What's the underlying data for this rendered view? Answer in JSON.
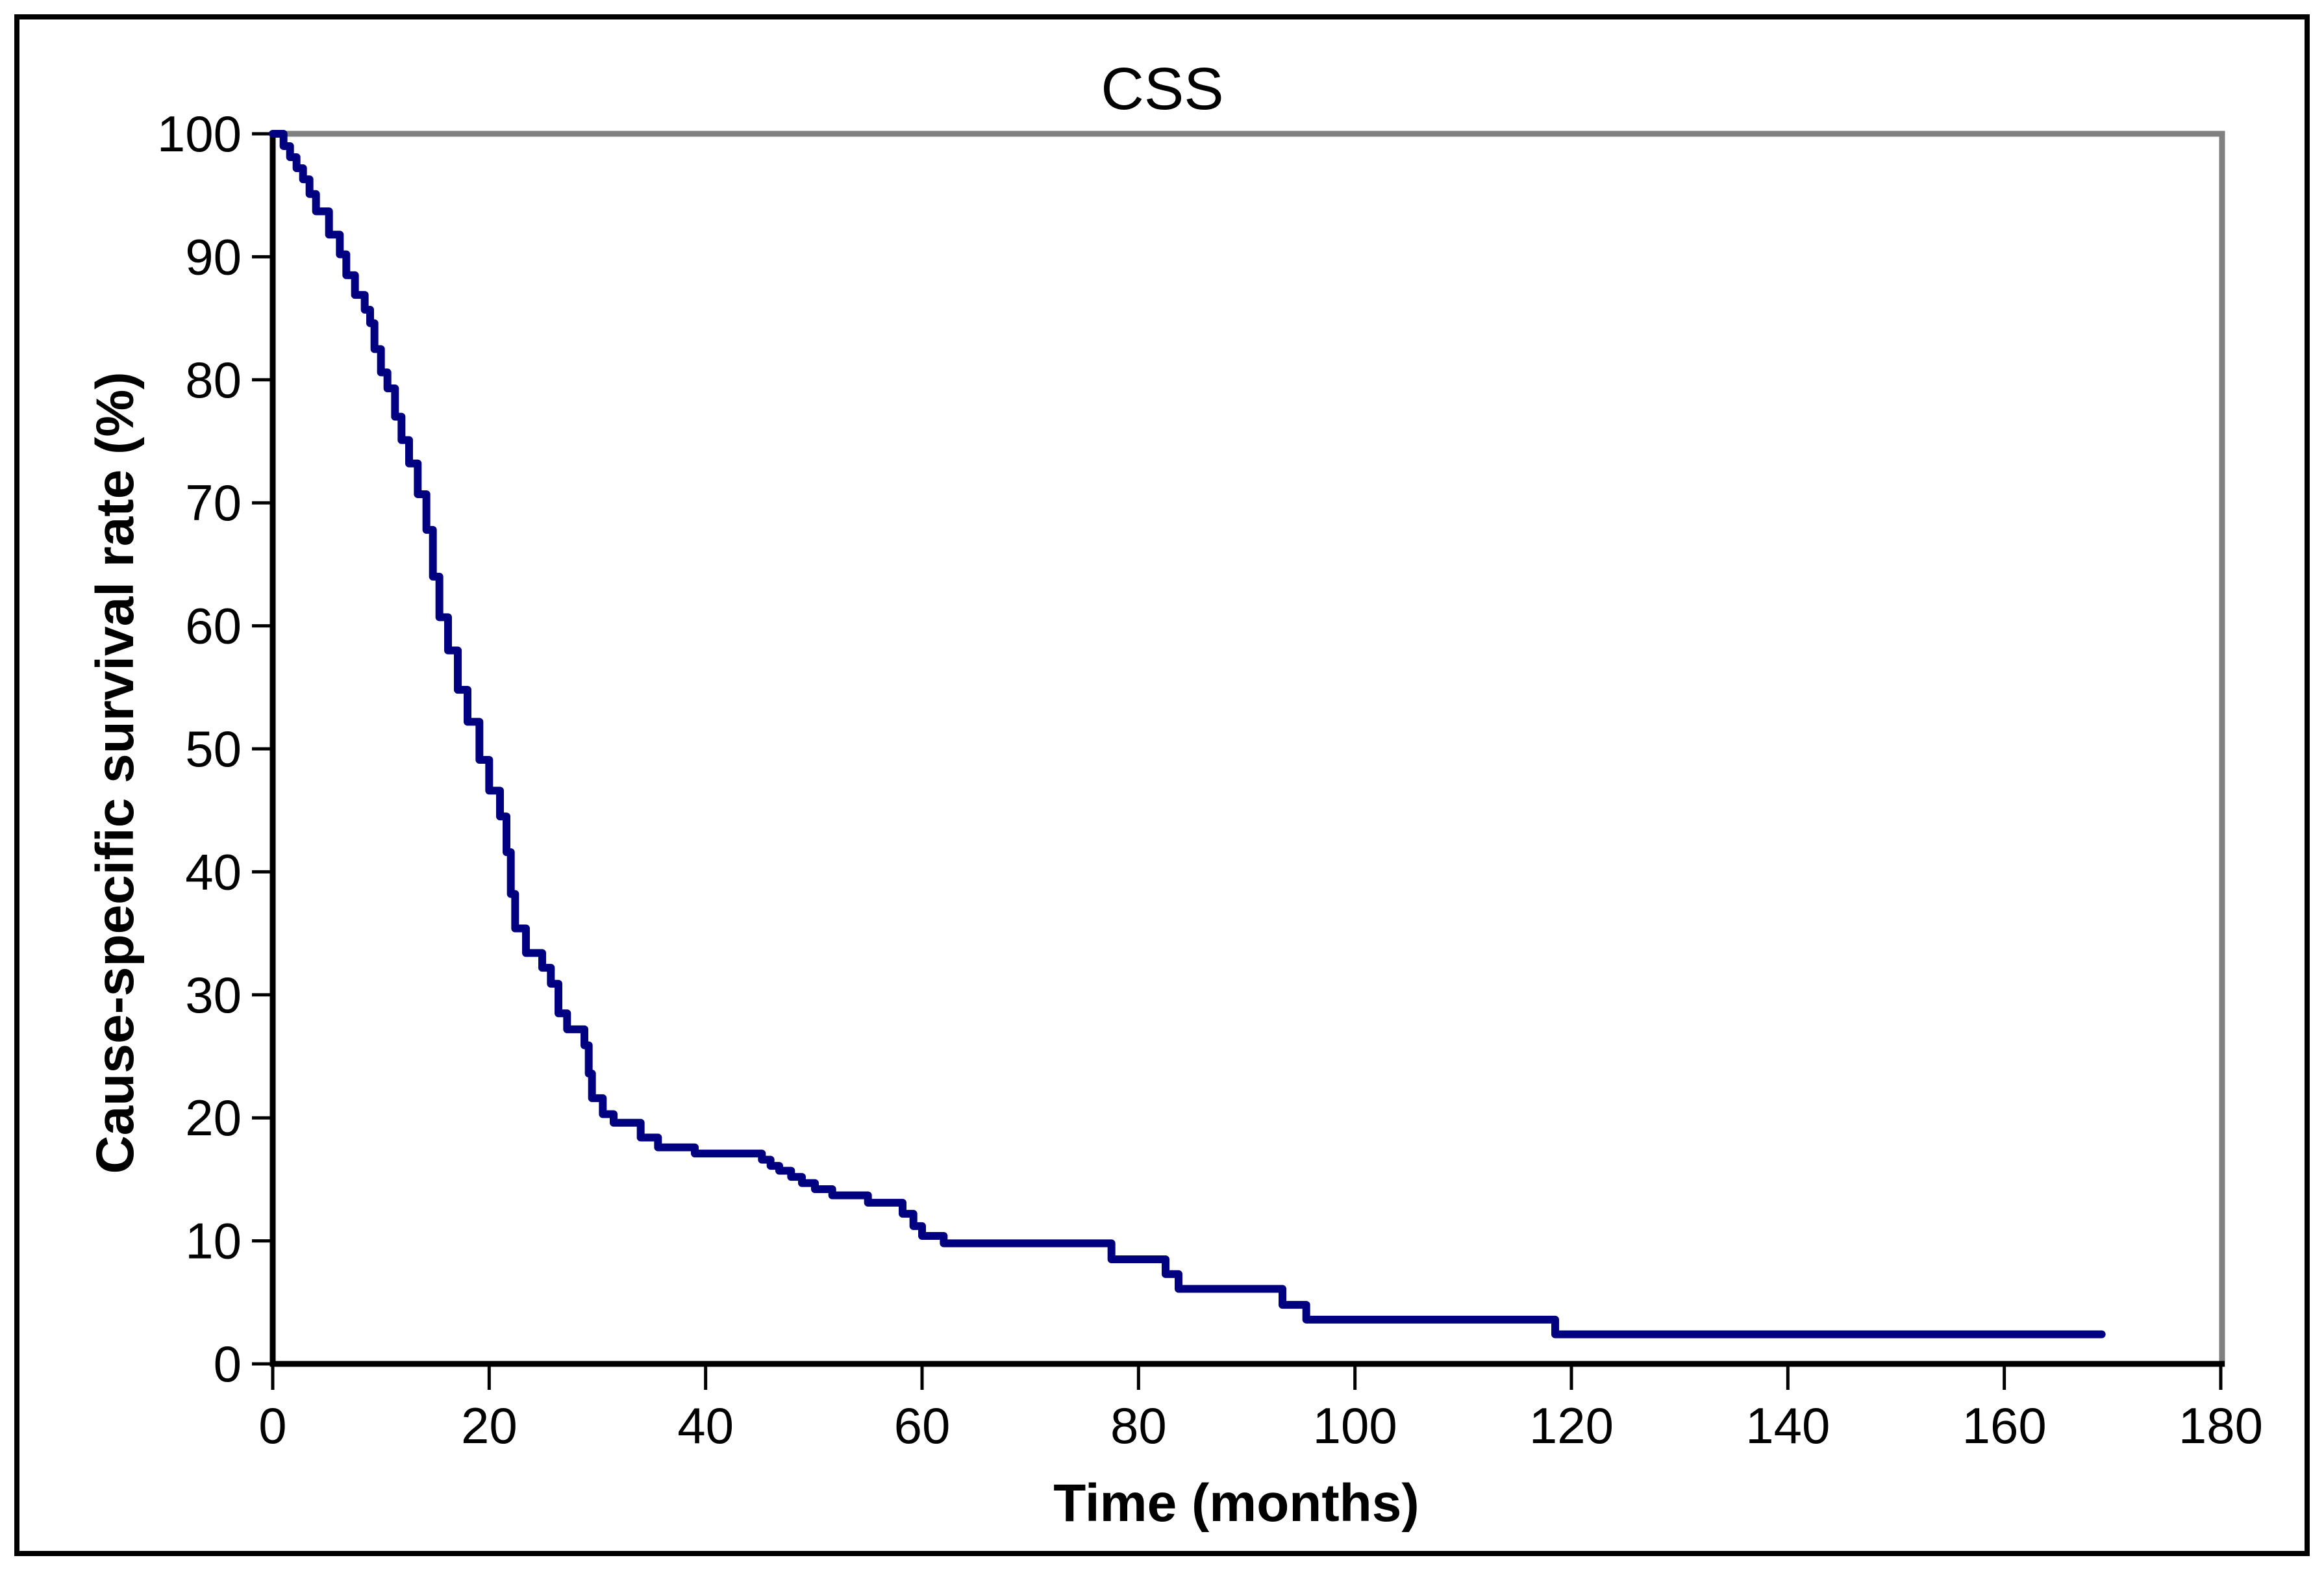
{
  "figure": {
    "title": "CSS",
    "background_color": "#ffffff",
    "outer_border_color": "#000000"
  },
  "chart_data": {
    "type": "line",
    "subtype": "kaplan-meier-step",
    "title": "CSS",
    "xlabel": "Time (months)",
    "ylabel": "Cause-specific survival rate (%)",
    "xlim": [
      0,
      180
    ],
    "ylim": [
      0,
      100
    ],
    "x_ticks": [
      0,
      20,
      40,
      60,
      80,
      100,
      120,
      140,
      160,
      180
    ],
    "y_ticks": [
      100,
      90,
      80,
      70,
      60,
      50,
      40,
      30,
      20,
      10,
      0
    ],
    "grid": "off",
    "legend": "none",
    "series": [
      {
        "name": "Cause-specific survival",
        "color": "#000080",
        "end_time": 169,
        "points": [
          [
            0,
            100
          ],
          [
            1.0,
            99.0
          ],
          [
            1.6,
            98.1
          ],
          [
            2.2,
            97.2
          ],
          [
            2.8,
            96.3
          ],
          [
            3.4,
            95.1
          ],
          [
            4.0,
            93.7
          ],
          [
            5.2,
            91.8
          ],
          [
            6.2,
            90.2
          ],
          [
            6.8,
            88.5
          ],
          [
            7.6,
            86.9
          ],
          [
            8.5,
            85.7
          ],
          [
            9.0,
            84.6
          ],
          [
            9.4,
            82.5
          ],
          [
            10.0,
            80.6
          ],
          [
            10.6,
            79.3
          ],
          [
            11.3,
            77.0
          ],
          [
            11.9,
            75.1
          ],
          [
            12.6,
            73.2
          ],
          [
            13.4,
            70.7
          ],
          [
            14.2,
            67.8
          ],
          [
            14.8,
            64.0
          ],
          [
            15.4,
            60.7
          ],
          [
            16.2,
            58.0
          ],
          [
            17.1,
            54.8
          ],
          [
            18.0,
            52.2
          ],
          [
            19.1,
            49.1
          ],
          [
            20.0,
            46.6
          ],
          [
            21.0,
            44.5
          ],
          [
            21.6,
            41.6
          ],
          [
            22.0,
            38.2
          ],
          [
            22.4,
            35.4
          ],
          [
            23.4,
            33.4
          ],
          [
            24.9,
            32.2
          ],
          [
            25.7,
            30.9
          ],
          [
            26.4,
            28.5
          ],
          [
            27.2,
            27.2
          ],
          [
            28.8,
            25.9
          ],
          [
            29.2,
            23.6
          ],
          [
            29.5,
            21.6
          ],
          [
            30.5,
            20.3
          ],
          [
            31.5,
            19.6
          ],
          [
            34.0,
            18.4
          ],
          [
            35.6,
            17.6
          ],
          [
            39.0,
            17.1
          ],
          [
            45.2,
            16.6
          ],
          [
            46.0,
            16.1
          ],
          [
            46.8,
            15.7
          ],
          [
            47.9,
            15.2
          ],
          [
            48.9,
            14.7
          ],
          [
            50.1,
            14.2
          ],
          [
            51.7,
            13.7
          ],
          [
            55.0,
            13.1
          ],
          [
            58.2,
            12.2
          ],
          [
            59.2,
            11.2
          ],
          [
            60.0,
            10.4
          ],
          [
            62.0,
            9.8
          ],
          [
            77.5,
            8.5
          ],
          [
            82.5,
            7.3
          ],
          [
            83.7,
            6.1
          ],
          [
            93.3,
            4.8
          ],
          [
            95.5,
            3.6
          ],
          [
            118.5,
            2.4
          ]
        ]
      }
    ],
    "colors": {
      "curve": "#000080",
      "plot_frame": "#808080",
      "axis": "#000000",
      "text": "#000000",
      "background": "#ffffff"
    }
  }
}
